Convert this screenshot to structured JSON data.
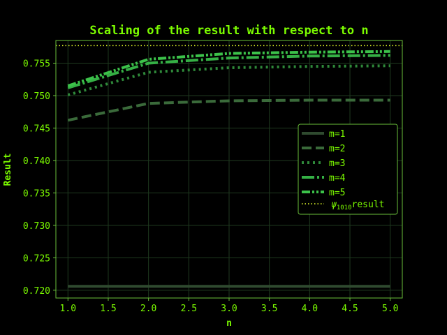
{
  "colors": {
    "background": "#000000",
    "text": "#7CFC00",
    "axis": "#6abf3a",
    "grid": "#1f3a1f",
    "m1": "#2f4a2f",
    "m2": "#3a6a3a",
    "m3": "#2f8a3a",
    "m4": "#35b045",
    "m5": "#3cc24a",
    "reference": "#e8ff2a"
  },
  "chart_data": {
    "type": "line",
    "title": "Scaling of the result with respect to n",
    "xlabel": "n",
    "ylabel": "Result",
    "xlim": [
      0.85,
      5.15
    ],
    "ylim": [
      0.7188,
      0.7585
    ],
    "xticks": [
      "1.0",
      "1.5",
      "2.0",
      "2.5",
      "3.0",
      "3.5",
      "4.0",
      "4.5",
      "5.0"
    ],
    "yticks": [
      "0.720",
      "0.725",
      "0.730",
      "0.735",
      "0.740",
      "0.745",
      "0.750",
      "0.755"
    ],
    "grid": true,
    "legend_position": "right",
    "x": [
      1,
      2,
      3,
      4,
      5
    ],
    "series": [
      {
        "name": "m=1",
        "values": [
          0.7206,
          0.7206,
          0.7206,
          0.7206,
          0.7206
        ]
      },
      {
        "name": "m=2",
        "values": [
          0.7462,
          0.7488,
          0.7492,
          0.7493,
          0.7493
        ]
      },
      {
        "name": "m=3",
        "values": [
          0.7501,
          0.7536,
          0.7543,
          0.7545,
          0.7546
        ]
      },
      {
        "name": "m=4",
        "values": [
          0.7512,
          0.755,
          0.7558,
          0.7561,
          0.7562
        ]
      },
      {
        "name": "m=5",
        "values": [
          0.7515,
          0.7556,
          0.7565,
          0.7567,
          0.7568
        ]
      }
    ],
    "reference": {
      "legend_prefix": "ψ",
      "legend_sub": "1010",
      "legend_suffix": "result",
      "value": 0.7577
    }
  }
}
